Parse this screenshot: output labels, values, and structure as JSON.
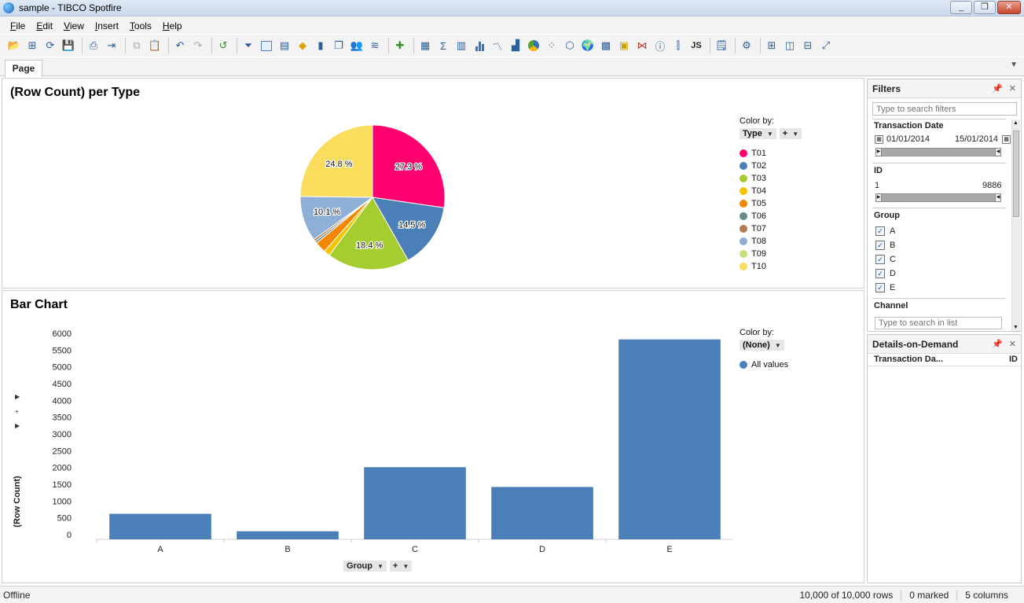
{
  "window": {
    "title": "sample - TIBCO Spotfire",
    "min": "_",
    "max": "❐",
    "close": "✕"
  },
  "menu": [
    {
      "first": "F",
      "rest": "ile"
    },
    {
      "first": "E",
      "rest": "dit"
    },
    {
      "first": "V",
      "rest": "iew"
    },
    {
      "first": "I",
      "rest": "nsert"
    },
    {
      "first": "T",
      "rest": "ools"
    },
    {
      "first": "H",
      "rest": "elp"
    }
  ],
  "toolbar": {
    "js_label": "JS"
  },
  "tabs": {
    "page": "Page"
  },
  "pie": {
    "title": "(Row Count) per Type",
    "color_by_label": "Color by:",
    "color_by_value": "Type",
    "plus": "+",
    "legend": [
      {
        "label": "T01",
        "color": "#ff006e"
      },
      {
        "label": "T02",
        "color": "#4a7fb8"
      },
      {
        "label": "T03",
        "color": "#a6cd2f"
      },
      {
        "label": "T04",
        "color": "#f5c400"
      },
      {
        "label": "T05",
        "color": "#f58700"
      },
      {
        "label": "T06",
        "color": "#688b8f"
      },
      {
        "label": "T07",
        "color": "#b07c50"
      },
      {
        "label": "T08",
        "color": "#8eafd6"
      },
      {
        "label": "T09",
        "color": "#c2e07a"
      },
      {
        "label": "T10",
        "color": "#fbdc5c"
      }
    ]
  },
  "bar": {
    "title": "Bar Chart",
    "color_by_label": "Color by:",
    "color_by_value": "(None)",
    "legend_item": "All values",
    "legend_color": "#4a7fb8",
    "x_selector": "Group",
    "plus": "+",
    "y_label": "(Row Count)"
  },
  "chart_data": [
    {
      "type": "pie",
      "title": "(Row Count) per Type",
      "slices": [
        {
          "label": "T01",
          "value": 27.3,
          "display": "27.3 %",
          "color": "#ff006e"
        },
        {
          "label": "T02",
          "value": 14.5,
          "display": "14.5 %",
          "color": "#4a7fb8"
        },
        {
          "label": "T03",
          "value": 18.4,
          "display": "18.4 %",
          "color": "#a6cd2f"
        },
        {
          "label": "T04",
          "value": 1.4,
          "display": "",
          "color": "#f5c400"
        },
        {
          "label": "T05",
          "value": 2.5,
          "display": "",
          "color": "#f58700"
        },
        {
          "label": "T06",
          "value": 0.5,
          "display": "",
          "color": "#688b8f"
        },
        {
          "label": "T07",
          "value": 0.5,
          "display": "",
          "color": "#b07c50"
        },
        {
          "label": "T08",
          "value": 10.1,
          "display": "10.1 %",
          "color": "#8eafd6"
        },
        {
          "label": "T09",
          "value": 0,
          "display": "",
          "color": "#c2e07a"
        },
        {
          "label": "T10",
          "value": 24.8,
          "display": "24.8 %",
          "color": "#fbdc5c"
        }
      ],
      "legend_placement": "right"
    },
    {
      "type": "bar",
      "title": "Bar Chart",
      "categories": [
        "A",
        "B",
        "C",
        "D",
        "E"
      ],
      "values": [
        620,
        100,
        2010,
        1420,
        5820
      ],
      "xlabel": "Group",
      "ylabel": "(Row Count)",
      "ylim": [
        0,
        6000
      ],
      "yticks": [
        0,
        500,
        1000,
        1500,
        2000,
        2500,
        3000,
        3500,
        4000,
        4500,
        5000,
        5500,
        6000
      ],
      "color": "#4a7fb8",
      "legend_placement": "right"
    }
  ],
  "filters": {
    "title": "Filters",
    "search_placeholder": "Type to search filters",
    "transaction_date": {
      "label": "Transaction Date",
      "from": "01/01/2014",
      "to": "15/01/2014"
    },
    "id": {
      "label": "ID",
      "min": "1",
      "max": "9886"
    },
    "group": {
      "label": "Group",
      "items": [
        "A",
        "B",
        "C",
        "D",
        "E"
      ]
    },
    "channel": {
      "label": "Channel",
      "search_placeholder": "Type to search in list"
    }
  },
  "details": {
    "title": "Details-on-Demand",
    "col1": "Transaction Da...",
    "col2": "ID"
  },
  "status": {
    "left": "Offline",
    "rows": "10,000 of 10,000 rows",
    "marked": "0 marked",
    "columns": "5 columns"
  }
}
